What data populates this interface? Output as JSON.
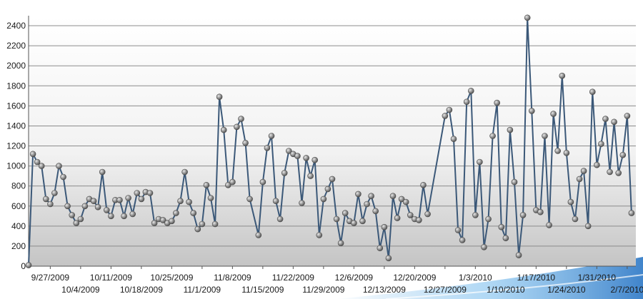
{
  "chart_data": {
    "type": "line",
    "title": "",
    "xlabel": "",
    "ylabel": "",
    "ylim": [
      0,
      2500
    ],
    "yticks": [
      0,
      200,
      400,
      600,
      800,
      1000,
      1200,
      1400,
      1600,
      1800,
      2000,
      2200,
      2400
    ],
    "grid": true,
    "legend": "none",
    "x_tick_labels": [
      "9/27/2009",
      "10/4/2009",
      "10/11/2009",
      "10/18/2009",
      "10/25/2009",
      "11/1/2009",
      "11/8/2009",
      "11/15/2009",
      "11/22/2009",
      "11/29/2009",
      "12/6/2009",
      "12/13/2009",
      "12/20/2009",
      "12/27/2009",
      "1/3/2010",
      "1/10/2010",
      "1/17/2010",
      "1/24/2010",
      "1/31/2010",
      "2/7/2010"
    ],
    "x_range": [
      "2009-09-22",
      "2010-02-09"
    ],
    "series": [
      {
        "color": "#3b5878",
        "points": [
          [
            "2009-09-22",
            10
          ],
          [
            "2009-09-23",
            1120
          ],
          [
            "2009-09-24",
            1040
          ],
          [
            "2009-09-25",
            1000
          ],
          [
            "2009-09-26",
            670
          ],
          [
            "2009-09-27",
            620
          ],
          [
            "2009-09-28",
            730
          ],
          [
            "2009-09-29",
            1000
          ],
          [
            "2009-09-30",
            890
          ],
          [
            "2009-10-01",
            600
          ],
          [
            "2009-10-02",
            510
          ],
          [
            "2009-10-03",
            430
          ],
          [
            "2009-10-04",
            470
          ],
          [
            "2009-10-05",
            600
          ],
          [
            "2009-10-06",
            670
          ],
          [
            "2009-10-07",
            650
          ],
          [
            "2009-10-08",
            590
          ],
          [
            "2009-10-09",
            940
          ],
          [
            "2009-10-10",
            560
          ],
          [
            "2009-10-11",
            500
          ],
          [
            "2009-10-12",
            660
          ],
          [
            "2009-10-13",
            660
          ],
          [
            "2009-10-14",
            500
          ],
          [
            "2009-10-15",
            680
          ],
          [
            "2009-10-16",
            520
          ],
          [
            "2009-10-17",
            730
          ],
          [
            "2009-10-18",
            670
          ],
          [
            "2009-10-19",
            740
          ],
          [
            "2009-10-20",
            730
          ],
          [
            "2009-10-21",
            430
          ],
          [
            "2009-10-22",
            470
          ],
          [
            "2009-10-23",
            460
          ],
          [
            "2009-10-24",
            430
          ],
          [
            "2009-10-25",
            450
          ],
          [
            "2009-10-26",
            530
          ],
          [
            "2009-10-27",
            650
          ],
          [
            "2009-10-28",
            940
          ],
          [
            "2009-10-29",
            640
          ],
          [
            "2009-10-30",
            530
          ],
          [
            "2009-10-31",
            370
          ],
          [
            "2009-11-01",
            420
          ],
          [
            "2009-11-02",
            810
          ],
          [
            "2009-11-03",
            680
          ],
          [
            "2009-11-04",
            420
          ],
          [
            "2009-11-05",
            1690
          ],
          [
            "2009-11-06",
            1360
          ],
          [
            "2009-11-07",
            810
          ],
          [
            "2009-11-08",
            840
          ],
          [
            "2009-11-09",
            1390
          ],
          [
            "2009-11-10",
            1470
          ],
          [
            "2009-11-11",
            1230
          ],
          [
            "2009-11-12",
            670
          ],
          [
            "2009-11-14",
            310
          ],
          [
            "2009-11-15",
            840
          ],
          [
            "2009-11-16",
            1180
          ],
          [
            "2009-11-17",
            1300
          ],
          [
            "2009-11-18",
            650
          ],
          [
            "2009-11-19",
            470
          ],
          [
            "2009-11-20",
            930
          ],
          [
            "2009-11-21",
            1150
          ],
          [
            "2009-11-22",
            1120
          ],
          [
            "2009-11-23",
            1100
          ],
          [
            "2009-11-24",
            630
          ],
          [
            "2009-11-25",
            1080
          ],
          [
            "2009-11-26",
            900
          ],
          [
            "2009-11-27",
            1060
          ],
          [
            "2009-11-28",
            310
          ],
          [
            "2009-11-29",
            670
          ],
          [
            "2009-11-30",
            770
          ],
          [
            "2009-12-01",
            870
          ],
          [
            "2009-12-02",
            470
          ],
          [
            "2009-12-03",
            230
          ],
          [
            "2009-12-04",
            530
          ],
          [
            "2009-12-05",
            450
          ],
          [
            "2009-12-06",
            430
          ],
          [
            "2009-12-07",
            720
          ],
          [
            "2009-12-08",
            450
          ],
          [
            "2009-12-09",
            620
          ],
          [
            "2009-12-10",
            700
          ],
          [
            "2009-12-11",
            550
          ],
          [
            "2009-12-12",
            180
          ],
          [
            "2009-12-13",
            390
          ],
          [
            "2009-12-14",
            80
          ],
          [
            "2009-12-15",
            700
          ],
          [
            "2009-12-16",
            480
          ],
          [
            "2009-12-17",
            670
          ],
          [
            "2009-12-18",
            640
          ],
          [
            "2009-12-19",
            510
          ],
          [
            "2009-12-20",
            470
          ],
          [
            "2009-12-21",
            460
          ],
          [
            "2009-12-22",
            810
          ],
          [
            "2009-12-23",
            520
          ],
          [
            "2009-12-27",
            1500
          ],
          [
            "2009-12-28",
            1560
          ],
          [
            "2009-12-29",
            1270
          ],
          [
            "2009-12-30",
            360
          ],
          [
            "2009-12-31",
            260
          ],
          [
            "2010-01-01",
            1640
          ],
          [
            "2010-01-02",
            1750
          ],
          [
            "2010-01-03",
            510
          ],
          [
            "2010-01-04",
            1040
          ],
          [
            "2010-01-05",
            190
          ],
          [
            "2010-01-06",
            470
          ],
          [
            "2010-01-07",
            1300
          ],
          [
            "2010-01-08",
            1630
          ],
          [
            "2010-01-09",
            390
          ],
          [
            "2010-01-10",
            280
          ],
          [
            "2010-01-11",
            1360
          ],
          [
            "2010-01-12",
            840
          ],
          [
            "2010-01-13",
            110
          ],
          [
            "2010-01-14",
            510
          ],
          [
            "2010-01-15",
            2480
          ],
          [
            "2010-01-16",
            1550
          ],
          [
            "2010-01-17",
            560
          ],
          [
            "2010-01-18",
            540
          ],
          [
            "2010-01-19",
            1300
          ],
          [
            "2010-01-20",
            410
          ],
          [
            "2010-01-21",
            1520
          ],
          [
            "2010-01-22",
            1150
          ],
          [
            "2010-01-23",
            1900
          ],
          [
            "2010-01-24",
            1130
          ],
          [
            "2010-01-25",
            640
          ],
          [
            "2010-01-26",
            470
          ],
          [
            "2010-01-27",
            870
          ],
          [
            "2010-01-28",
            950
          ],
          [
            "2010-01-29",
            400
          ],
          [
            "2010-01-30",
            1740
          ],
          [
            "2010-01-31",
            1010
          ],
          [
            "2010-02-01",
            1220
          ],
          [
            "2010-02-02",
            1470
          ],
          [
            "2010-02-03",
            940
          ],
          [
            "2010-02-04",
            1440
          ],
          [
            "2010-02-05",
            930
          ],
          [
            "2010-02-06",
            1110
          ],
          [
            "2010-02-07",
            1500
          ],
          [
            "2010-02-08",
            530
          ]
        ]
      }
    ]
  }
}
